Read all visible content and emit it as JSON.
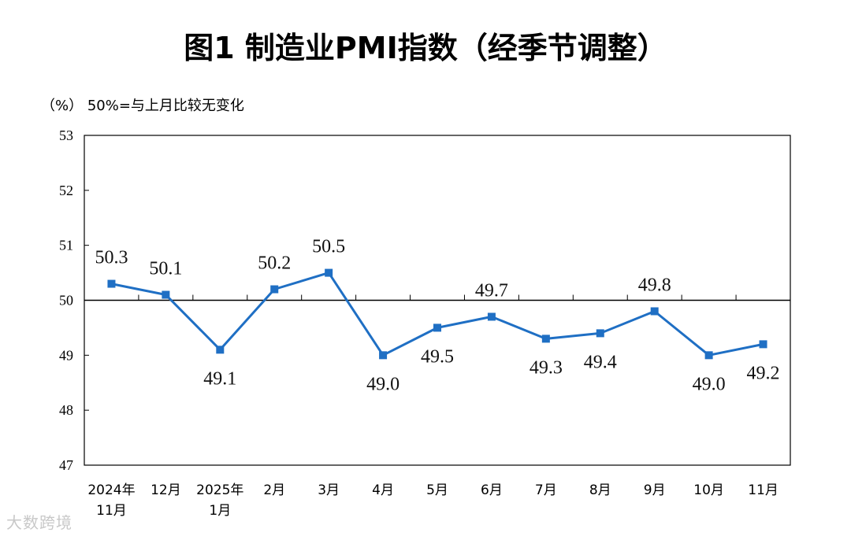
{
  "watermark": "大数跨境",
  "chart_data": {
    "type": "line",
    "title": "图1  制造业PMI指数（经季节调整）",
    "unit_note": "（%）  50%=与上月比较无变化",
    "categories": [
      [
        "2024年",
        "11月"
      ],
      [
        "12月"
      ],
      [
        "2025年",
        "1月"
      ],
      [
        "2月"
      ],
      [
        "3月"
      ],
      [
        "4月"
      ],
      [
        "5月"
      ],
      [
        "6月"
      ],
      [
        "7月"
      ],
      [
        "8月"
      ],
      [
        "9月"
      ],
      [
        "10月"
      ],
      [
        "11月"
      ]
    ],
    "values": [
      50.3,
      50.1,
      49.1,
      50.2,
      50.5,
      49.0,
      49.5,
      49.7,
      49.3,
      49.4,
      49.8,
      49.0,
      49.2
    ],
    "value_labels": [
      "50.3",
      "50.1",
      "49.1",
      "50.2",
      "50.5",
      "49.0",
      "49.5",
      "49.7",
      "49.3",
      "49.4",
      "49.8",
      "49.0",
      "49.2"
    ],
    "label_side": [
      "above",
      "above",
      "below",
      "above",
      "above",
      "below",
      "below",
      "above",
      "below",
      "below",
      "above",
      "below",
      "below"
    ],
    "ylim": [
      47,
      53
    ],
    "yticks": [
      47,
      48,
      49,
      50,
      51,
      52,
      53
    ],
    "reference_line": 50,
    "line_color": "#1f6fc4",
    "marker_color": "#1f6fc4",
    "xlabel": "",
    "ylabel": "%"
  }
}
